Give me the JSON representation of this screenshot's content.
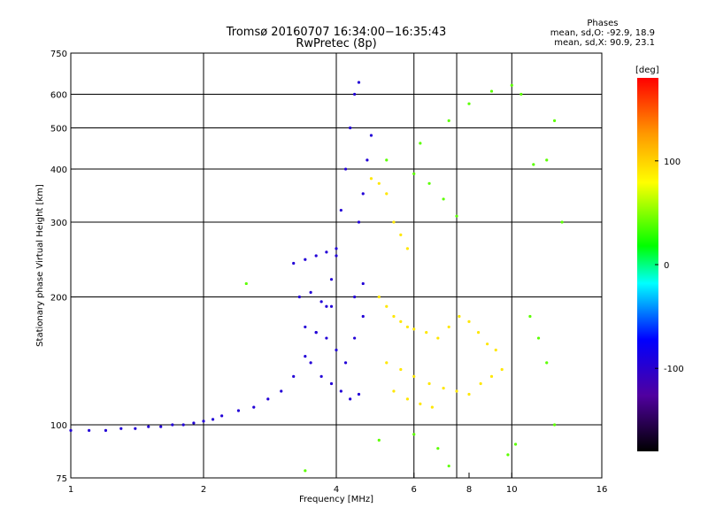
{
  "chart_data": {
    "type": "scatter",
    "title": "Tromsø 20160707 16:34:00−16:35:43",
    "subtitle": "RwPretec (8p)",
    "xlabel": "Frequency [MHz]",
    "ylabel": "Stationary phase Virtual Height [km]",
    "x_scale": "log2",
    "y_scale": "log",
    "xlim": [
      1,
      16
    ],
    "ylim": [
      75,
      750
    ],
    "x_ticks": [
      1,
      2,
      4,
      6,
      8,
      10,
      16
    ],
    "x_tick_labels": [
      "1",
      "2",
      "4",
      "6",
      "8",
      "10",
      "16"
    ],
    "x_grid": [
      2,
      4,
      6,
      7.5,
      10
    ],
    "y_ticks": [
      75,
      100,
      200,
      300,
      400,
      500,
      600,
      750
    ],
    "y_tick_labels": [
      "75",
      "100",
      "200",
      "300",
      "400",
      "500",
      "600",
      "750"
    ],
    "y_grid": [
      100,
      200,
      300,
      400,
      500,
      600
    ],
    "legend": {
      "header": "Phases",
      "line1": "mean, sd,O:  -92.9,  18.9",
      "line2": "mean, sd,X:   90.9,  23.1"
    },
    "colorbar": {
      "label": "[deg]",
      "range": [
        -180,
        180
      ],
      "ticks": [
        100,
        0,
        -100
      ],
      "tick_labels": [
        "100",
        "0",
        "-100"
      ],
      "palette": "rainbow: black-purple-blue-cyan-green-yellow-orange-red"
    },
    "series": [
      {
        "trace": "low-frequency E/F trace",
        "color_phase": -95,
        "points": [
          [
            1.0,
            97
          ],
          [
            1.1,
            97
          ],
          [
            1.2,
            97
          ],
          [
            1.3,
            98
          ],
          [
            1.4,
            98
          ],
          [
            1.5,
            99
          ],
          [
            1.6,
            99
          ],
          [
            1.7,
            100
          ],
          [
            1.8,
            100
          ],
          [
            1.9,
            101
          ],
          [
            2.0,
            102
          ],
          [
            2.1,
            103
          ],
          [
            2.2,
            105
          ],
          [
            2.4,
            108
          ],
          [
            2.6,
            110
          ],
          [
            2.8,
            115
          ],
          [
            3.0,
            120
          ],
          [
            3.2,
            130
          ],
          [
            3.4,
            145
          ],
          [
            3.6,
            165
          ],
          [
            3.8,
            190
          ],
          [
            3.9,
            220
          ],
          [
            4.0,
            260
          ],
          [
            4.1,
            320
          ],
          [
            4.2,
            400
          ],
          [
            4.3,
            500
          ],
          [
            4.4,
            600
          ],
          [
            4.5,
            640
          ]
        ]
      },
      {
        "trace": "ordinary F cluster",
        "color_phase": -95,
        "points": [
          [
            3.2,
            240
          ],
          [
            3.4,
            245
          ],
          [
            3.6,
            250
          ],
          [
            3.8,
            255
          ],
          [
            4.0,
            250
          ],
          [
            3.3,
            200
          ],
          [
            3.5,
            205
          ],
          [
            3.7,
            195
          ],
          [
            3.9,
            190
          ],
          [
            3.4,
            170
          ],
          [
            3.6,
            165
          ],
          [
            3.8,
            160
          ],
          [
            4.0,
            150
          ],
          [
            3.5,
            140
          ],
          [
            3.7,
            130
          ],
          [
            3.9,
            125
          ],
          [
            4.1,
            120
          ],
          [
            4.3,
            115
          ],
          [
            4.5,
            118
          ],
          [
            4.2,
            140
          ],
          [
            4.4,
            160
          ],
          [
            4.6,
            180
          ],
          [
            4.4,
            200
          ],
          [
            4.6,
            215
          ],
          [
            4.5,
            300
          ],
          [
            4.6,
            350
          ],
          [
            4.7,
            420
          ],
          [
            4.8,
            480
          ]
        ]
      },
      {
        "trace": "extraordinary trace",
        "color_phase": 90,
        "points": [
          [
            4.8,
            380
          ],
          [
            5.0,
            370
          ],
          [
            5.2,
            350
          ],
          [
            5.4,
            300
          ],
          [
            5.6,
            280
          ],
          [
            5.8,
            260
          ],
          [
            5.0,
            200
          ],
          [
            5.2,
            190
          ],
          [
            5.4,
            180
          ],
          [
            5.6,
            175
          ],
          [
            5.8,
            170
          ],
          [
            6.0,
            168
          ],
          [
            6.4,
            165
          ],
          [
            6.8,
            160
          ],
          [
            7.2,
            170
          ],
          [
            7.6,
            180
          ],
          [
            8.0,
            175
          ],
          [
            8.4,
            165
          ],
          [
            8.8,
            155
          ],
          [
            9.2,
            150
          ],
          [
            5.2,
            140
          ],
          [
            5.6,
            135
          ],
          [
            6.0,
            130
          ],
          [
            6.5,
            125
          ],
          [
            7.0,
            122
          ],
          [
            7.5,
            120
          ],
          [
            8.0,
            118
          ],
          [
            8.5,
            125
          ],
          [
            9.0,
            130
          ],
          [
            9.5,
            135
          ],
          [
            5.4,
            120
          ],
          [
            5.8,
            115
          ],
          [
            6.2,
            112
          ],
          [
            6.6,
            110
          ]
        ]
      },
      {
        "trace": "sparse outliers",
        "color_phase": 40,
        "points": [
          [
            5.2,
            420
          ],
          [
            6.0,
            390
          ],
          [
            6.5,
            370
          ],
          [
            7.0,
            340
          ],
          [
            7.5,
            310
          ],
          [
            6.2,
            460
          ],
          [
            7.2,
            520
          ],
          [
            8.0,
            570
          ],
          [
            9.0,
            610
          ],
          [
            10.0,
            630
          ],
          [
            10.5,
            600
          ],
          [
            11.2,
            410
          ],
          [
            12.0,
            420
          ],
          [
            12.5,
            520
          ],
          [
            13.0,
            300
          ],
          [
            11.0,
            180
          ],
          [
            11.5,
            160
          ],
          [
            12.0,
            140
          ],
          [
            12.5,
            100
          ],
          [
            10.2,
            90
          ],
          [
            9.8,
            85
          ],
          [
            7.2,
            80
          ],
          [
            6.8,
            88
          ],
          [
            6.0,
            95
          ],
          [
            5.0,
            92
          ],
          [
            3.4,
            78
          ],
          [
            2.5,
            215
          ]
        ]
      }
    ]
  }
}
